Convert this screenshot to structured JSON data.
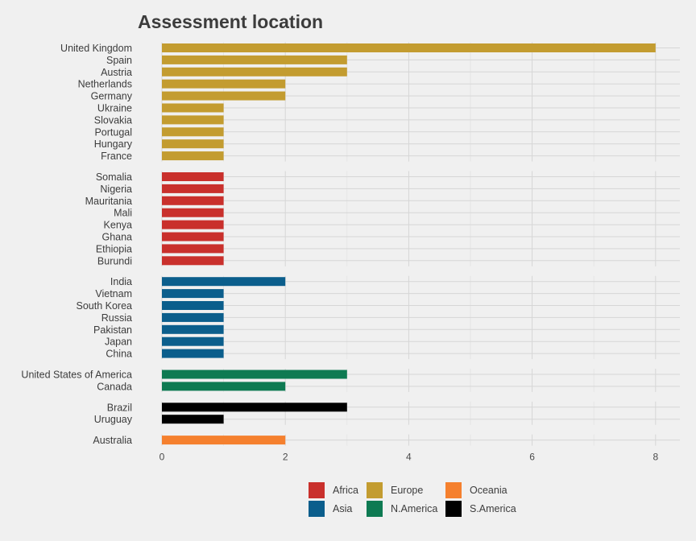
{
  "chart_data": {
    "type": "bar",
    "orientation": "horizontal",
    "title": "Assessment location",
    "xlabel": "",
    "ylabel": "",
    "xlim": [
      0,
      8
    ],
    "x_ticks": [
      "0",
      "2",
      "4",
      "6",
      "8"
    ],
    "grid": true,
    "legend_position": "bottom",
    "facets": [
      {
        "group": "Europe",
        "color": "#c39c30",
        "categories": [
          "United Kingdom",
          "Spain",
          "Austria",
          "Netherlands",
          "Germany",
          "Ukraine",
          "Slovakia",
          "Portugal",
          "Hungary",
          "France"
        ],
        "values": [
          8,
          3,
          3,
          2,
          2,
          1,
          1,
          1,
          1,
          1
        ]
      },
      {
        "group": "Africa",
        "color": "#c9302c",
        "categories": [
          "Somalia",
          "Nigeria",
          "Mauritania",
          "Mali",
          "Kenya",
          "Ghana",
          "Ethiopia",
          "Burundi"
        ],
        "values": [
          1,
          1,
          1,
          1,
          1,
          1,
          1,
          1
        ]
      },
      {
        "group": "Asia",
        "color": "#0b5e8c",
        "categories": [
          "India",
          "Vietnam",
          "South Korea",
          "Russia",
          "Pakistan",
          "Japan",
          "China"
        ],
        "values": [
          2,
          1,
          1,
          1,
          1,
          1,
          1
        ]
      },
      {
        "group": "N.America",
        "color": "#0e7a52",
        "categories": [
          "United States of America",
          "Canada"
        ],
        "values": [
          3,
          2
        ]
      },
      {
        "group": "S.America",
        "color": "#000000",
        "categories": [
          "Brazil",
          "Uruguay"
        ],
        "values": [
          3,
          1
        ]
      },
      {
        "group": "Oceania",
        "color": "#f5802e",
        "categories": [
          "Australia"
        ],
        "values": [
          2
        ]
      }
    ],
    "legend": [
      {
        "label": "Africa",
        "color": "#c9302c"
      },
      {
        "label": "Europe",
        "color": "#c39c30"
      },
      {
        "label": "Oceania",
        "color": "#f5802e"
      },
      {
        "label": "Asia",
        "color": "#0b5e8c"
      },
      {
        "label": "N.America",
        "color": "#0e7a52"
      },
      {
        "label": "S.America",
        "color": "#000000"
      }
    ]
  }
}
